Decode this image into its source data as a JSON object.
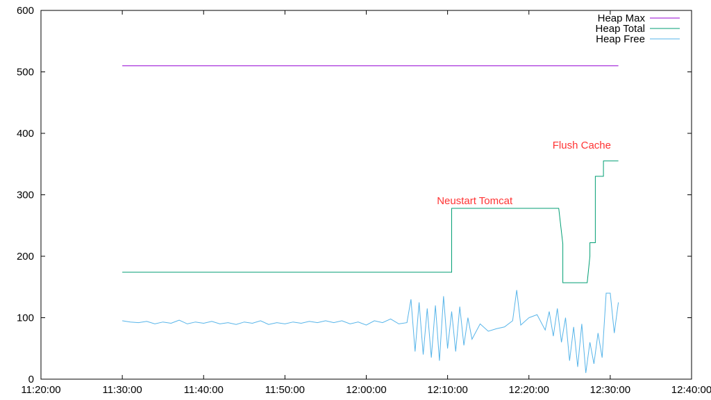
{
  "chart_data": {
    "type": "line",
    "title": "",
    "xlabel": "",
    "ylabel": "",
    "xlim": [
      "11:20:00",
      "12:40:00"
    ],
    "ylim": [
      0,
      600
    ],
    "grid": false,
    "legend_position": "top-right",
    "x_ticks": [
      "11:20:00",
      "11:30:00",
      "11:40:00",
      "11:50:00",
      "12:00:00",
      "12:10:00",
      "12:20:00",
      "12:30:00",
      "12:40:00"
    ],
    "y_ticks": [
      "0",
      "100",
      "200",
      "300",
      "400",
      "500",
      "600"
    ],
    "series": [
      {
        "name": "Heap Max",
        "color": "#9400d3",
        "x": [
          "11:30:00",
          "12:31:00"
        ],
        "y": [
          510,
          510
        ]
      },
      {
        "name": "Heap Total",
        "color": "#009e73",
        "x": [
          "11:30:00",
          "12:10:30",
          "12:10:30",
          "12:23:40",
          "12:24:10",
          "12:24:10",
          "12:27:10",
          "12:27:30",
          "12:27:30",
          "12:28:10",
          "12:28:10",
          "12:29:10",
          "12:29:10",
          "12:31:00"
        ],
        "y": [
          174,
          174,
          278,
          278,
          220,
          157,
          157,
          200,
          222,
          222,
          330,
          330,
          355,
          355
        ]
      },
      {
        "name": "Heap Free",
        "color": "#56b4e9",
        "x": [
          "11:30:00",
          "11:31:00",
          "11:32:00",
          "11:33:00",
          "11:34:00",
          "11:35:00",
          "11:36:00",
          "11:37:00",
          "11:38:00",
          "11:39:00",
          "11:40:00",
          "11:41:00",
          "11:42:00",
          "11:43:00",
          "11:44:00",
          "11:45:00",
          "11:46:00",
          "11:47:00",
          "11:48:00",
          "11:49:00",
          "11:50:00",
          "11:51:00",
          "11:52:00",
          "11:53:00",
          "11:54:00",
          "11:55:00",
          "11:56:00",
          "11:57:00",
          "11:58:00",
          "11:59:00",
          "12:00:00",
          "12:01:00",
          "12:02:00",
          "12:03:00",
          "12:04:00",
          "12:05:00",
          "12:05:30",
          "12:06:00",
          "12:06:30",
          "12:07:00",
          "12:07:30",
          "12:08:00",
          "12:08:30",
          "12:09:00",
          "12:09:30",
          "12:10:00",
          "12:10:30",
          "12:11:00",
          "12:11:30",
          "12:12:00",
          "12:12:30",
          "12:13:00",
          "12:14:00",
          "12:15:00",
          "12:16:00",
          "12:17:00",
          "12:18:00",
          "12:18:30",
          "12:19:00",
          "12:20:00",
          "12:21:00",
          "12:22:00",
          "12:22:30",
          "12:23:00",
          "12:23:30",
          "12:24:00",
          "12:24:30",
          "12:25:00",
          "12:25:30",
          "12:26:00",
          "12:26:30",
          "12:27:00",
          "12:27:30",
          "12:28:00",
          "12:28:30",
          "12:29:00",
          "12:29:30",
          "12:30:00",
          "12:30:30",
          "12:31:00"
        ],
        "y": [
          95,
          93,
          92,
          94,
          90,
          93,
          91,
          96,
          90,
          93,
          91,
          94,
          90,
          92,
          89,
          93,
          91,
          95,
          89,
          92,
          90,
          93,
          91,
          94,
          92,
          95,
          92,
          95,
          90,
          93,
          88,
          95,
          92,
          98,
          90,
          92,
          130,
          45,
          125,
          40,
          115,
          35,
          120,
          30,
          135,
          50,
          110,
          45,
          118,
          55,
          100,
          65,
          90,
          78,
          82,
          85,
          95,
          145,
          88,
          100,
          105,
          80,
          110,
          70,
          115,
          60,
          100,
          30,
          85,
          20,
          90,
          10,
          60,
          25,
          75,
          35,
          140,
          140,
          75,
          125
        ]
      }
    ],
    "annotations": [
      {
        "text": "Neustart Tomcat",
        "x": "12:13:20",
        "y": 285,
        "color": "#ff3333"
      },
      {
        "text": "Flush Cache",
        "x": "12:26:30",
        "y": 375,
        "color": "#ff3333"
      }
    ]
  }
}
